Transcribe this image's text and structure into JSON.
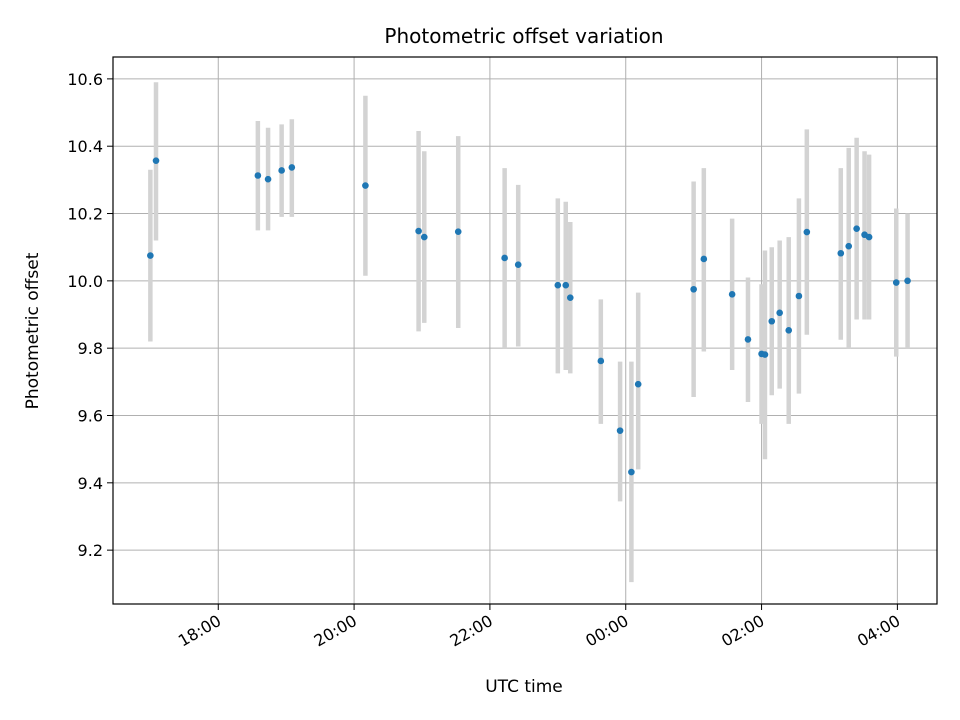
{
  "chart_data": {
    "type": "scatter",
    "title": "Photometric offset variation",
    "xlabel": "UTC time",
    "ylabel": "Photometric offset",
    "xlim": [
      "16:27",
      "04:35"
    ],
    "ylim": [
      9.04,
      10.665
    ],
    "x_tick_labels": [
      "18:00",
      "20:00",
      "22:00",
      "00:00",
      "02:00",
      "04:00"
    ],
    "y_tick_labels": [
      "9.2",
      "9.4",
      "9.6",
      "9.8",
      "10.0",
      "10.2",
      "10.4",
      "10.6"
    ],
    "y_ticks": [
      9.2,
      9.4,
      9.6,
      9.8,
      10.0,
      10.2,
      10.4,
      10.6
    ],
    "grid": true,
    "marker_color": "#1f77b4",
    "errorbar_color": "#d3d3d3",
    "series": [
      {
        "x": [
          "17:00",
          "17:05",
          "18:35",
          "18:44",
          "18:56",
          "19:05",
          "20:10",
          "20:57",
          "21:02",
          "21:32",
          "22:13",
          "22:25",
          "23:00",
          "23:07",
          "23:11",
          "23:38",
          "23:55",
          "24:05",
          "24:11",
          "25:00",
          "25:09",
          "25:34",
          "25:48",
          "26:00",
          "26:03",
          "26:09",
          "26:16",
          "26:24",
          "26:33",
          "26:40",
          "27:10",
          "27:17",
          "27:24",
          "27:31",
          "27:35",
          "27:59",
          "28:09"
        ],
        "y": [
          10.075,
          10.357,
          10.313,
          10.302,
          10.328,
          10.337,
          10.283,
          10.148,
          10.13,
          10.146,
          10.068,
          10.048,
          9.987,
          9.987,
          9.95,
          9.762,
          9.555,
          9.432,
          9.693,
          9.975,
          10.065,
          9.96,
          9.826,
          9.783,
          9.781,
          9.88,
          9.905,
          9.853,
          9.955,
          10.145,
          10.082,
          10.103,
          10.155,
          10.137,
          10.13,
          9.995,
          10.0
        ],
        "y_low": [
          9.82,
          10.12,
          10.15,
          10.15,
          10.19,
          10.19,
          10.015,
          9.85,
          9.875,
          9.86,
          9.8,
          9.805,
          9.725,
          9.735,
          9.725,
          9.575,
          9.345,
          9.105,
          9.44,
          9.655,
          9.79,
          9.735,
          9.64,
          9.575,
          9.47,
          9.66,
          9.68,
          9.575,
          9.665,
          9.84,
          9.825,
          9.8,
          9.885,
          9.885,
          9.885,
          9.775,
          9.8
        ],
        "y_high": [
          10.33,
          10.59,
          10.475,
          10.455,
          10.465,
          10.48,
          10.55,
          10.445,
          10.385,
          10.43,
          10.335,
          10.285,
          10.245,
          10.235,
          10.175,
          9.945,
          9.76,
          9.76,
          9.965,
          10.295,
          10.335,
          10.185,
          10.01,
          9.99,
          10.09,
          10.1,
          10.12,
          10.13,
          10.245,
          10.45,
          10.335,
          10.395,
          10.425,
          10.385,
          10.375,
          10.215,
          10.2
        ]
      }
    ]
  }
}
